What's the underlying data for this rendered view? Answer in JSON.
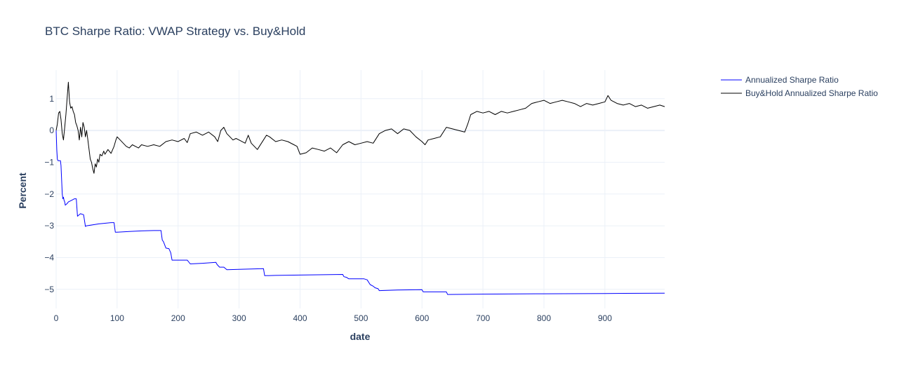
{
  "chart_data": {
    "type": "line",
    "title": "BTC Sharpe Ratio: VWAP Strategy vs. Buy&Hold",
    "xlabel": "date",
    "ylabel": "Percent",
    "xlim": [
      0,
      998
    ],
    "ylim": [
      -5.6,
      1.9
    ],
    "x_ticks": [
      0,
      100,
      200,
      300,
      400,
      500,
      600,
      700,
      800,
      900
    ],
    "y_ticks": [
      1,
      0,
      -1,
      -2,
      -3,
      -4,
      -5
    ],
    "y_tick_labels": [
      "1",
      "0",
      "−1",
      "−2",
      "−3",
      "−4",
      "−5"
    ],
    "grid": true,
    "legend_position": "top-right",
    "series": [
      {
        "name": "Annualized Sharpe Ratio",
        "color": "#0000ff",
        "x": [
          0,
          1,
          2,
          3,
          5,
          7,
          8,
          10,
          11,
          12,
          13,
          14,
          15,
          18,
          20,
          25,
          30,
          33,
          35,
          38,
          40,
          45,
          48,
          50,
          60,
          70,
          80,
          90,
          95,
          96,
          97,
          100,
          120,
          140,
          160,
          172,
          174,
          176,
          180,
          185,
          188,
          190,
          200,
          210,
          215,
          220,
          240,
          262,
          264,
          268,
          275,
          280,
          300,
          320,
          340,
          342,
          360,
          400,
          440,
          470,
          472,
          476,
          480,
          500,
          505,
          510,
          515,
          520,
          523,
          528,
          530,
          560,
          600,
          602,
          620,
          640,
          642,
          700,
          800,
          900,
          998
        ],
        "y": [
          0,
          -0.6,
          -0.9,
          -0.95,
          -0.95,
          -0.95,
          -1.1,
          -2.0,
          -2.15,
          -2.1,
          -2.2,
          -2.25,
          -2.35,
          -2.3,
          -2.25,
          -2.2,
          -2.15,
          -2.15,
          -2.7,
          -2.65,
          -2.62,
          -2.65,
          -3.02,
          -3.0,
          -2.97,
          -2.94,
          -2.92,
          -2.9,
          -2.9,
          -3.05,
          -3.2,
          -3.2,
          -3.18,
          -3.16,
          -3.15,
          -3.15,
          -3.45,
          -3.5,
          -3.7,
          -3.72,
          -3.85,
          -4.08,
          -4.08,
          -4.08,
          -4.08,
          -4.2,
          -4.18,
          -4.15,
          -4.22,
          -4.3,
          -4.3,
          -4.38,
          -4.37,
          -4.36,
          -4.35,
          -4.57,
          -4.56,
          -4.55,
          -4.54,
          -4.53,
          -4.6,
          -4.62,
          -4.67,
          -4.67,
          -4.67,
          -4.7,
          -4.85,
          -4.9,
          -4.95,
          -4.98,
          -5.04,
          -5.02,
          -5.01,
          -5.08,
          -5.08,
          -5.08,
          -5.16,
          -5.15,
          -5.14,
          -5.13,
          -5.12
        ]
      },
      {
        "name": "Buy&Hold Annualized Sharpe Ratio",
        "color": "#000000",
        "x": [
          0,
          2,
          4,
          6,
          8,
          10,
          12,
          14,
          16,
          18,
          20,
          22,
          24,
          26,
          28,
          30,
          32,
          34,
          36,
          38,
          40,
          42,
          44,
          46,
          48,
          50,
          52,
          54,
          56,
          58,
          60,
          62,
          64,
          66,
          68,
          70,
          72,
          75,
          78,
          80,
          85,
          90,
          95,
          98,
          100,
          105,
          110,
          115,
          120,
          125,
          130,
          135,
          140,
          150,
          160,
          170,
          180,
          190,
          200,
          210,
          215,
          220,
          230,
          240,
          250,
          260,
          265,
          270,
          275,
          280,
          285,
          290,
          295,
          300,
          310,
          315,
          320,
          330,
          340,
          345,
          350,
          360,
          370,
          380,
          390,
          395,
          400,
          410,
          420,
          430,
          440,
          450,
          460,
          470,
          480,
          490,
          500,
          510,
          520,
          530,
          540,
          550,
          560,
          570,
          580,
          590,
          600,
          605,
          610,
          620,
          630,
          640,
          650,
          660,
          670,
          675,
          680,
          690,
          700,
          710,
          720,
          730,
          740,
          750,
          760,
          770,
          780,
          790,
          800,
          810,
          820,
          830,
          840,
          850,
          860,
          870,
          880,
          890,
          900,
          905,
          910,
          920,
          930,
          940,
          950,
          960,
          970,
          980,
          990,
          998
        ],
        "y": [
          0,
          0.2,
          0.55,
          0.6,
          0.35,
          -0.1,
          -0.3,
          0.1,
          0.5,
          1.0,
          1.52,
          0.9,
          0.7,
          0.75,
          0.6,
          0.5,
          0.25,
          0.15,
          0.0,
          -0.3,
          0.1,
          -0.2,
          0.25,
          0.1,
          -0.2,
          0.0,
          -0.3,
          -0.6,
          -0.9,
          -1.0,
          -1.2,
          -1.35,
          -1.05,
          -1.15,
          -0.9,
          -1.0,
          -0.75,
          -0.8,
          -0.65,
          -0.75,
          -0.6,
          -0.72,
          -0.5,
          -0.3,
          -0.2,
          -0.3,
          -0.4,
          -0.5,
          -0.55,
          -0.45,
          -0.5,
          -0.55,
          -0.45,
          -0.5,
          -0.45,
          -0.5,
          -0.35,
          -0.3,
          -0.35,
          -0.25,
          -0.38,
          -0.1,
          -0.05,
          -0.15,
          -0.05,
          -0.2,
          -0.35,
          0.0,
          0.1,
          -0.1,
          -0.2,
          -0.3,
          -0.25,
          -0.3,
          -0.4,
          -0.15,
          -0.4,
          -0.6,
          -0.3,
          -0.15,
          -0.2,
          -0.35,
          -0.3,
          -0.35,
          -0.45,
          -0.5,
          -0.75,
          -0.7,
          -0.55,
          -0.6,
          -0.65,
          -0.55,
          -0.7,
          -0.45,
          -0.35,
          -0.45,
          -0.4,
          -0.35,
          -0.4,
          -0.1,
          0.0,
          0.05,
          -0.1,
          0.05,
          0.0,
          -0.2,
          -0.35,
          -0.45,
          -0.3,
          -0.25,
          -0.2,
          0.1,
          0.05,
          0.0,
          -0.05,
          0.2,
          0.5,
          0.6,
          0.55,
          0.6,
          0.5,
          0.6,
          0.55,
          0.6,
          0.65,
          0.7,
          0.85,
          0.9,
          0.95,
          0.85,
          0.9,
          0.95,
          0.9,
          0.85,
          0.75,
          0.85,
          0.8,
          0.85,
          0.9,
          1.1,
          0.95,
          0.85,
          0.8,
          0.85,
          0.75,
          0.8,
          0.7,
          0.75,
          0.8,
          0.75
        ]
      }
    ]
  }
}
